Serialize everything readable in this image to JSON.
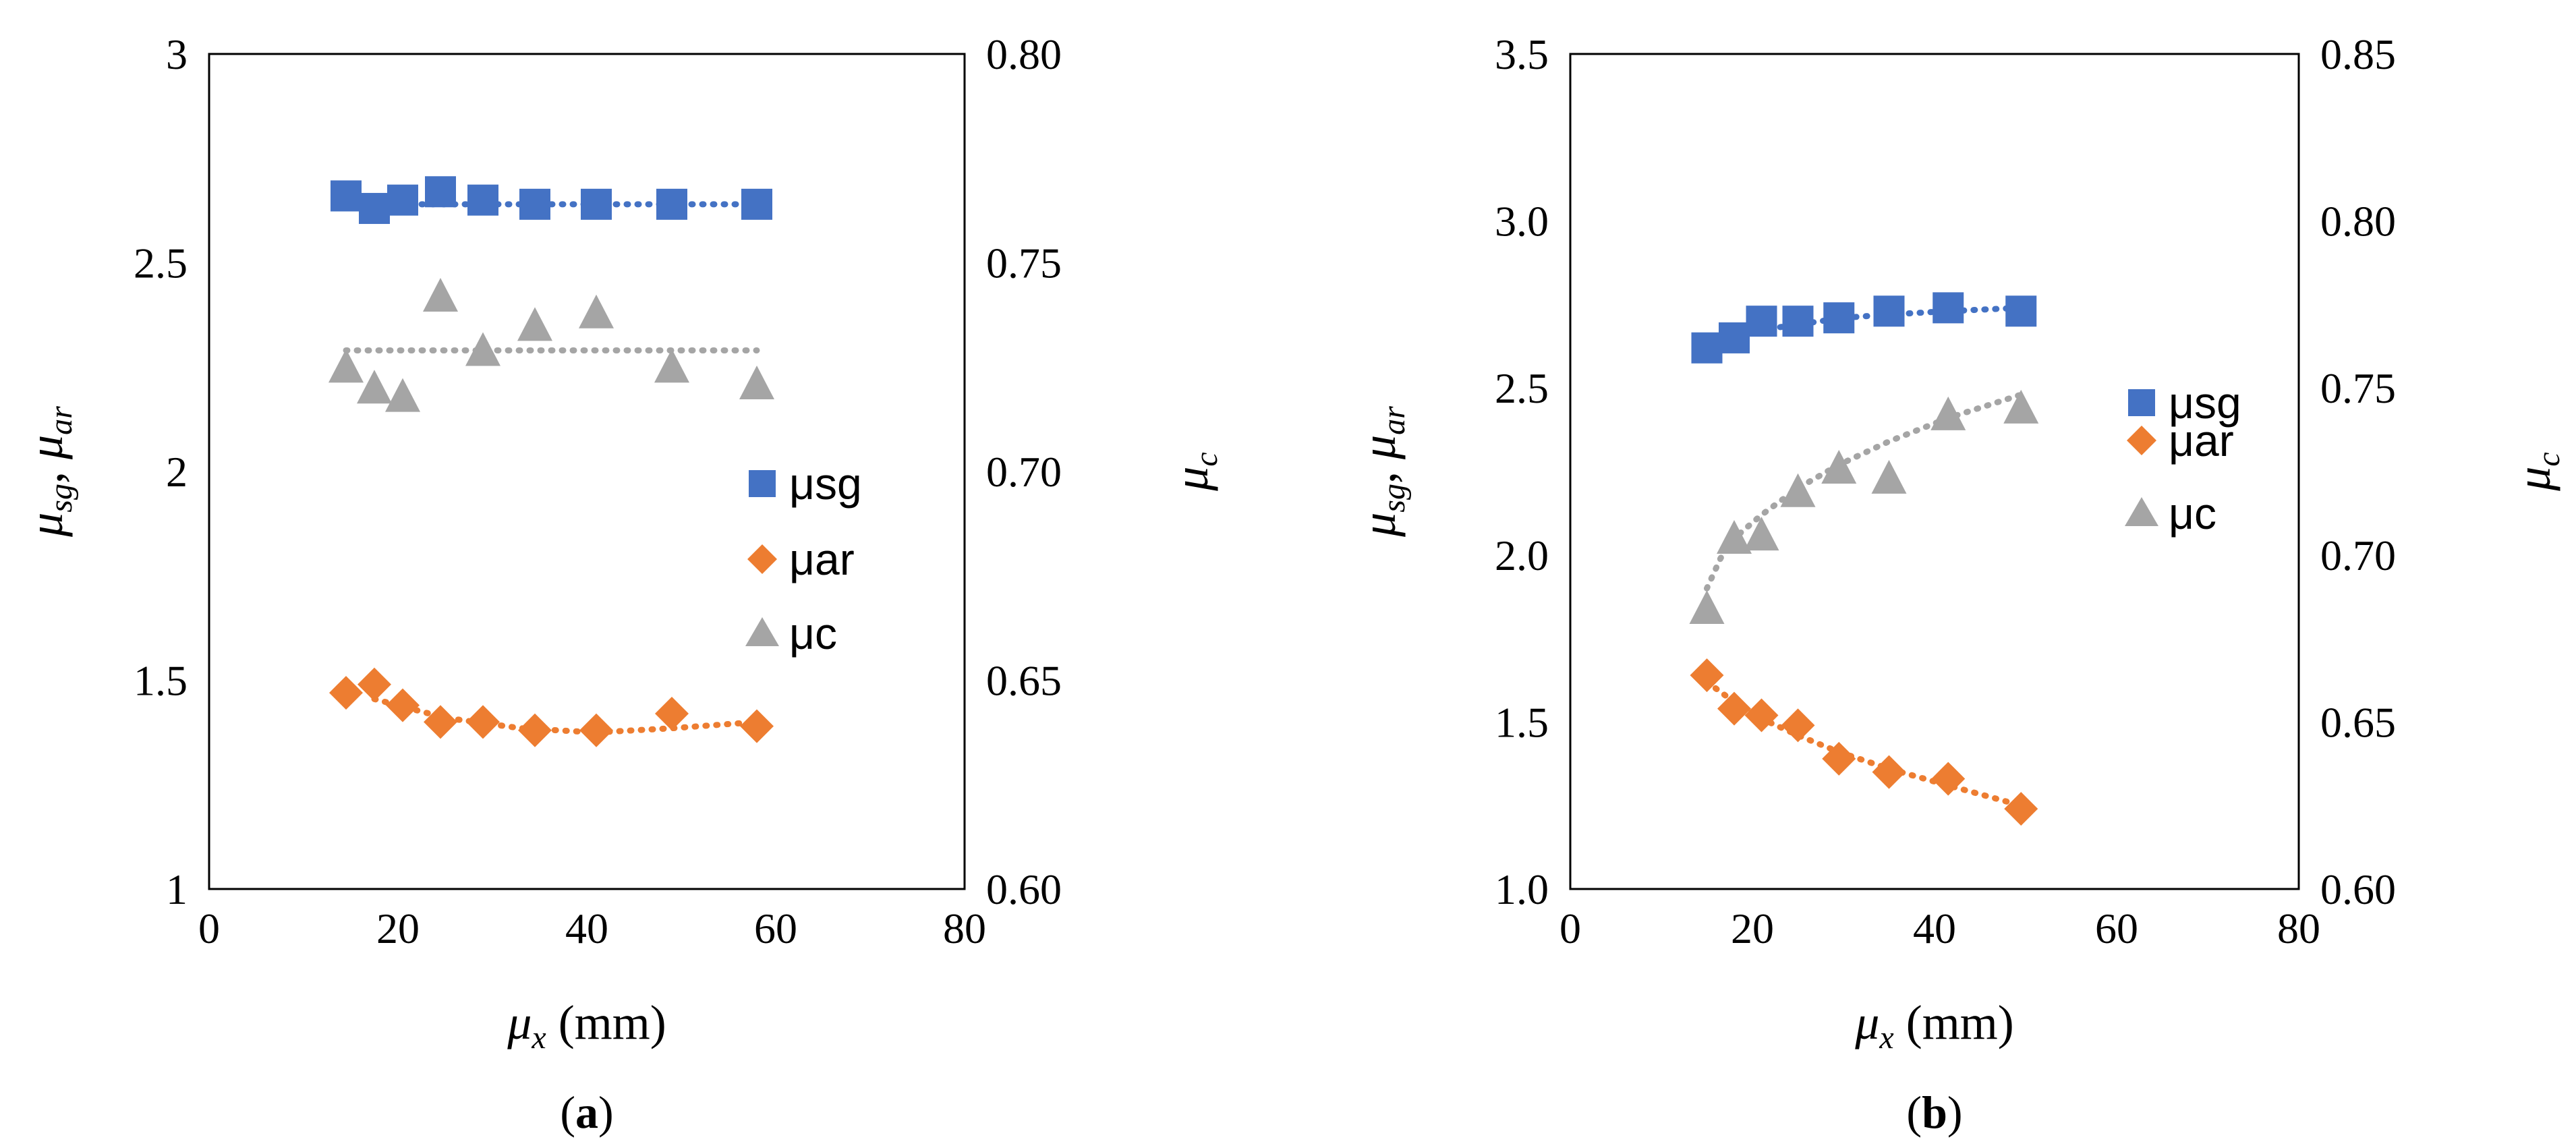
{
  "chart_data": [
    {
      "type": "scatter",
      "panel_label": "a",
      "xlabel": {
        "sym": "μ",
        "sub": "x",
        "unit": " (mm)"
      },
      "ylabel_left": {
        "sym1": "μ",
        "sub1": "sg",
        "sep": ", ",
        "sym2": "μ",
        "sub2": "ar"
      },
      "ylabel_right": {
        "sym": "μ",
        "sub": "c"
      },
      "xlim": [
        0,
        80
      ],
      "xticks": [
        "0",
        "20",
        "40",
        "60",
        "80"
      ],
      "ylim_left": [
        1,
        3
      ],
      "yticks_left": [
        "1",
        "1.5",
        "2",
        "2.5",
        "3"
      ],
      "ylim_right": [
        0.6,
        0.8
      ],
      "yticks_right": [
        "0.60",
        "0.65",
        "0.70",
        "0.75",
        "0.80"
      ],
      "legend": [
        "μsg",
        "μar",
        "μc"
      ],
      "series": [
        {
          "name": "μsg",
          "axis": "left",
          "marker": "square",
          "color": "#4472C4",
          "x": [
            14.5,
            17.5,
            20.5,
            24.5,
            29,
            34.5,
            41,
            49,
            58
          ],
          "y": [
            2.66,
            2.63,
            2.65,
            2.67,
            2.65,
            2.64,
            2.64,
            2.64,
            2.64
          ],
          "trend": [
            2.64,
            2.64
          ]
        },
        {
          "name": "μar",
          "axis": "left",
          "marker": "diamond",
          "color": "#ED7D31",
          "x": [
            14.5,
            17.5,
            20.5,
            24.5,
            29,
            34.5,
            41,
            49,
            58
          ],
          "y": [
            1.47,
            1.49,
            1.44,
            1.4,
            1.4,
            1.38,
            1.38,
            1.42,
            1.39
          ],
          "trend_points": [
            [
              17.5,
              1.455
            ],
            [
              25,
              1.41
            ],
            [
              33,
              1.385
            ],
            [
              41,
              1.375
            ],
            [
              49,
              1.385
            ],
            [
              58,
              1.4
            ]
          ]
        },
        {
          "name": "μc",
          "axis": "right",
          "marker": "triangle",
          "color": "#A5A5A5",
          "x": [
            14.5,
            17.5,
            20.5,
            24.5,
            29,
            34.5,
            41,
            49,
            58
          ],
          "y": [
            0.725,
            0.72,
            0.718,
            0.742,
            0.729,
            0.735,
            0.738,
            0.725,
            0.721
          ],
          "trend": [
            0.729,
            0.729
          ]
        }
      ]
    },
    {
      "type": "scatter",
      "panel_label": "b",
      "xlabel": {
        "sym": "μ",
        "sub": "x",
        "unit": " (mm)"
      },
      "ylabel_left": {
        "sym1": "μ",
        "sub1": "sg",
        "sep": ", ",
        "sym2": "μ",
        "sub2": "ar"
      },
      "ylabel_right": {
        "sym": "μ",
        "sub": "c"
      },
      "xlim": [
        0,
        80
      ],
      "xticks": [
        "0",
        "20",
        "40",
        "60",
        "80"
      ],
      "ylim_left": [
        1.0,
        3.5
      ],
      "yticks_left": [
        "1.0",
        "1.5",
        "2.0",
        "2.5",
        "3.0",
        "3.5"
      ],
      "ylim_right": [
        0.6,
        0.85
      ],
      "yticks_right": [
        "0.60",
        "0.65",
        "0.70",
        "0.75",
        "0.80",
        "0.85"
      ],
      "legend": [
        "μsg",
        "μar",
        "μc"
      ],
      "series": [
        {
          "name": "μsg",
          "axis": "left",
          "marker": "square",
          "color": "#4472C4",
          "x": [
            15,
            18,
            21,
            25,
            29.5,
            35,
            41.5,
            49.5
          ],
          "y": [
            2.62,
            2.65,
            2.7,
            2.7,
            2.71,
            2.73,
            2.74,
            2.73
          ],
          "trend_points": [
            [
              15,
              2.63
            ],
            [
              20,
              2.67
            ],
            [
              25,
              2.69
            ],
            [
              30,
              2.71
            ],
            [
              35,
              2.72
            ],
            [
              41.5,
              2.73
            ],
            [
              49.5,
              2.74
            ]
          ]
        },
        {
          "name": "μar",
          "axis": "left",
          "marker": "diamond",
          "color": "#ED7D31",
          "x": [
            15,
            18,
            21,
            25,
            29.5,
            35,
            41.5,
            49.5
          ],
          "y": [
            1.64,
            1.54,
            1.52,
            1.49,
            1.39,
            1.35,
            1.33,
            1.24
          ],
          "trend_points": [
            [
              15,
              1.62
            ],
            [
              18,
              1.56
            ],
            [
              21,
              1.51
            ],
            [
              25,
              1.46
            ],
            [
              29.5,
              1.41
            ],
            [
              35,
              1.36
            ],
            [
              41.5,
              1.31
            ],
            [
              49.5,
              1.25
            ]
          ]
        },
        {
          "name": "μc",
          "axis": "right",
          "marker": "triangle",
          "color": "#A5A5A5",
          "x": [
            15,
            18,
            21,
            25,
            29.5,
            35,
            41.5,
            49.5
          ],
          "y": [
            0.684,
            0.705,
            0.706,
            0.719,
            0.726,
            0.723,
            0.742,
            0.744
          ],
          "trend_points": [
            [
              15,
              0.69
            ],
            [
              16.5,
              0.699
            ],
            [
              18,
              0.705
            ],
            [
              21,
              0.712
            ],
            [
              25,
              0.72
            ],
            [
              29.5,
              0.727
            ],
            [
              35,
              0.734
            ],
            [
              41.5,
              0.741
            ],
            [
              49.5,
              0.748
            ]
          ]
        }
      ]
    }
  ]
}
